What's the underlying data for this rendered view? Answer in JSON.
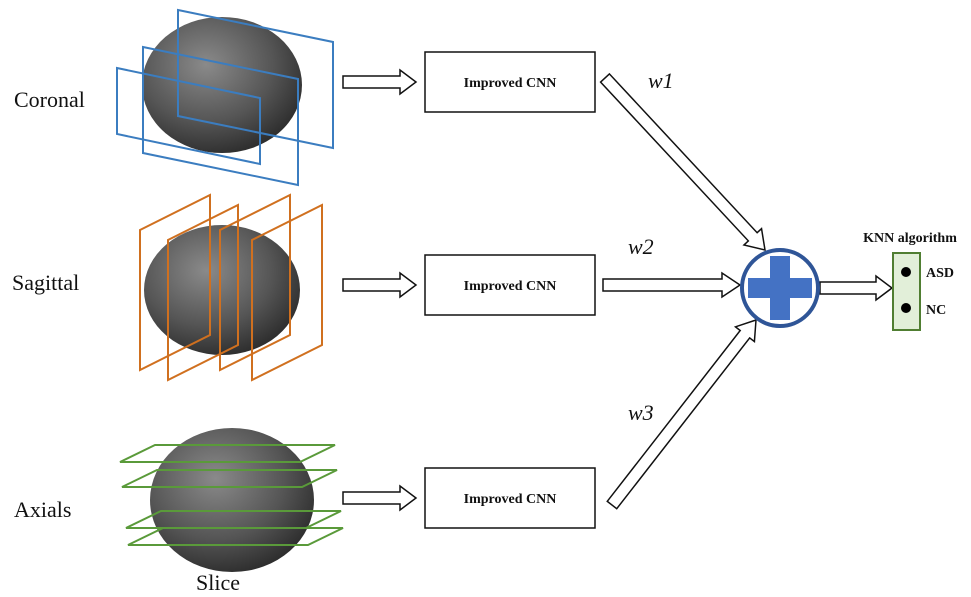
{
  "rows": [
    {
      "view": "Coronal",
      "model": "Improved CNN",
      "weight": "w1"
    },
    {
      "view": "Sagittal",
      "model": "Improved CNN",
      "weight": "w2"
    },
    {
      "view": "Axials",
      "model": "Improved CNN",
      "weight": "w3"
    }
  ],
  "slice_label": "Slice",
  "classifier": {
    "title": "KNN algorithm",
    "classes": [
      "ASD",
      "NC"
    ]
  }
}
